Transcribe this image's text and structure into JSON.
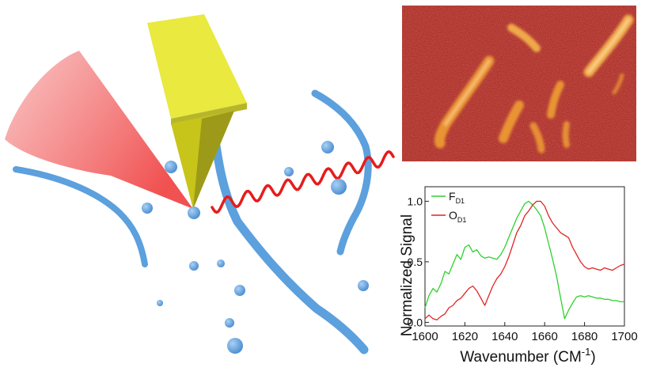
{
  "illustration": {
    "cantilever_color": "#e4e43a",
    "tip_color": "#c7c41a",
    "laser_color": "#f25b5b",
    "fiber_color": "#5ca0dd",
    "particle_color": "#5b9ddc",
    "ir_wave_color": "#e61c1c"
  },
  "microscopy": {
    "background_color": "#9b1d1d",
    "feature_color": "#f2a233"
  },
  "chart_data": {
    "type": "line",
    "title": "",
    "xlabel": "Wavenumber (CM",
    "xlabel_sup": "-1",
    "xlabel_close": ")",
    "ylabel": "Normalized Signal",
    "xlim": [
      1600,
      1700
    ],
    "ylim": [
      -0.03,
      1.12
    ],
    "xticks": [
      "1600",
      "1620",
      "1640",
      "1660",
      "1680",
      "1700"
    ],
    "yticks": [
      "0.0",
      "0.5",
      "1.0"
    ],
    "legend_position": "top-left",
    "series": [
      {
        "name": "F",
        "subscript": "D1",
        "color": "#2fd12f",
        "x": [
          1600,
          1602,
          1604,
          1606,
          1608,
          1610,
          1612,
          1614,
          1616,
          1618,
          1620,
          1622,
          1624,
          1626,
          1628,
          1630,
          1632,
          1634,
          1636,
          1638,
          1640,
          1642,
          1644,
          1646,
          1648,
          1650,
          1652,
          1654,
          1656,
          1658,
          1660,
          1662,
          1664,
          1666,
          1668,
          1670,
          1672,
          1674,
          1676,
          1678,
          1680,
          1682,
          1684,
          1686,
          1688,
          1690,
          1692,
          1694,
          1696,
          1698,
          1700
        ],
        "y": [
          0.12,
          0.22,
          0.28,
          0.25,
          0.32,
          0.42,
          0.4,
          0.48,
          0.56,
          0.52,
          0.62,
          0.64,
          0.58,
          0.6,
          0.55,
          0.53,
          0.54,
          0.53,
          0.52,
          0.56,
          0.62,
          0.7,
          0.78,
          0.86,
          0.92,
          0.98,
          1.0,
          0.97,
          0.93,
          0.88,
          0.78,
          0.65,
          0.52,
          0.38,
          0.2,
          0.03,
          0.1,
          0.16,
          0.21,
          0.22,
          0.21,
          0.22,
          0.21,
          0.2,
          0.2,
          0.19,
          0.19,
          0.18,
          0.18,
          0.17,
          0.17
        ]
      },
      {
        "name": "O",
        "subscript": "D1",
        "color": "#e02424",
        "x": [
          1600,
          1602,
          1604,
          1606,
          1608,
          1610,
          1612,
          1614,
          1616,
          1618,
          1620,
          1622,
          1624,
          1626,
          1628,
          1630,
          1632,
          1634,
          1636,
          1638,
          1640,
          1642,
          1644,
          1646,
          1648,
          1650,
          1652,
          1654,
          1656,
          1658,
          1660,
          1662,
          1664,
          1666,
          1668,
          1670,
          1672,
          1674,
          1676,
          1678,
          1680,
          1682,
          1684,
          1686,
          1688,
          1690,
          1692,
          1694,
          1696,
          1698,
          1700
        ],
        "y": [
          0.03,
          0.06,
          0.03,
          0.02,
          0.05,
          0.07,
          0.12,
          0.14,
          0.18,
          0.2,
          0.24,
          0.28,
          0.3,
          0.26,
          0.2,
          0.14,
          0.22,
          0.3,
          0.36,
          0.4,
          0.46,
          0.54,
          0.64,
          0.74,
          0.8,
          0.88,
          0.92,
          0.97,
          1.0,
          1.0,
          0.96,
          0.88,
          0.82,
          0.78,
          0.74,
          0.72,
          0.7,
          0.62,
          0.56,
          0.5,
          0.46,
          0.44,
          0.45,
          0.44,
          0.43,
          0.45,
          0.44,
          0.43,
          0.45,
          0.47,
          0.48
        ]
      }
    ]
  }
}
